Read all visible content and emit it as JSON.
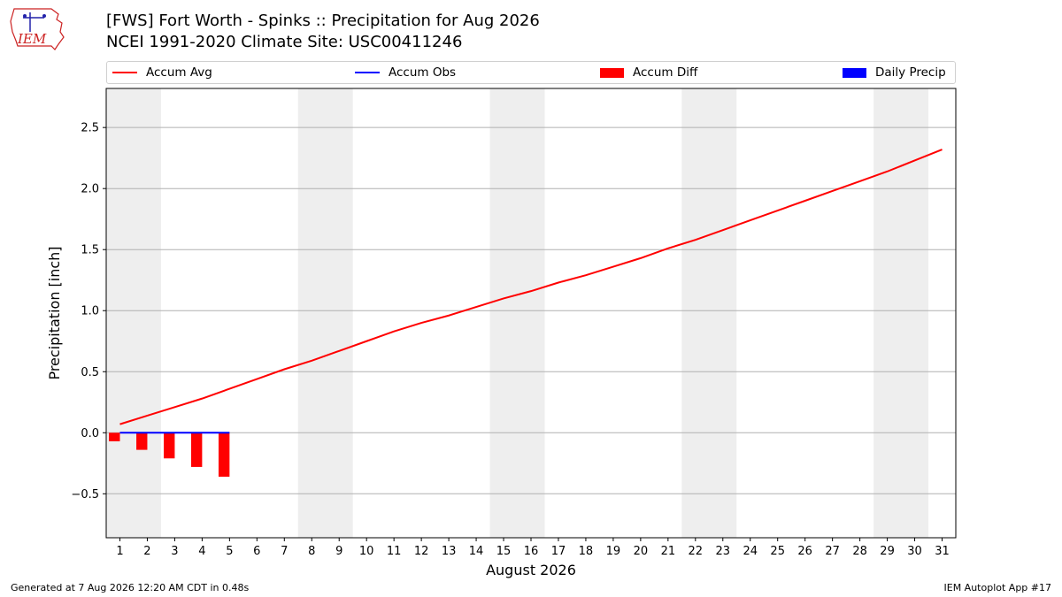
{
  "header": {
    "title_line1": "[FWS] Fort Worth - Spinks :: Precipitation for Aug 2026",
    "title_line2": "NCEI 1991-2020 Climate Site: USC00411246"
  },
  "logo": {
    "text": "IEM",
    "color": "#cc2222"
  },
  "legend": [
    {
      "label": "Accum Avg",
      "kind": "line",
      "color": "#ff0000"
    },
    {
      "label": "Accum Obs",
      "kind": "line",
      "color": "#0000ff"
    },
    {
      "label": "Accum Diff",
      "kind": "box",
      "color": "#ff0000"
    },
    {
      "label": "Daily Precip",
      "kind": "box",
      "color": "#0000ff"
    }
  ],
  "footer": {
    "generated": "Generated at 7 Aug 2026 12:20 AM CDT in 0.48s",
    "app": "IEM Autoplot App #17"
  },
  "chart_data": {
    "type": "line",
    "xlabel": "August 2026",
    "ylabel": "Precipitation [inch]",
    "xlim": [
      0.5,
      31.5
    ],
    "ylim": [
      -0.86,
      2.82
    ],
    "yticks": [
      -0.5,
      0.0,
      0.5,
      1.0,
      1.5,
      2.0,
      2.5
    ],
    "ytick_labels": [
      "−0.5",
      "0.0",
      "0.5",
      "1.0",
      "1.5",
      "2.0",
      "2.5"
    ],
    "x": [
      1,
      2,
      3,
      4,
      5,
      6,
      7,
      8,
      9,
      10,
      11,
      12,
      13,
      14,
      15,
      16,
      17,
      18,
      19,
      20,
      21,
      22,
      23,
      24,
      25,
      26,
      27,
      28,
      29,
      30,
      31
    ],
    "weekend_bands": [
      [
        0.5,
        2.5
      ],
      [
        7.5,
        9.5
      ],
      [
        14.5,
        16.5
      ],
      [
        21.5,
        23.5
      ],
      [
        28.5,
        30.5
      ]
    ],
    "grid": "horizontal",
    "series": [
      {
        "name": "Accum Avg",
        "type": "line",
        "color": "#ff0000",
        "x": [
          1,
          2,
          3,
          4,
          5,
          6,
          7,
          8,
          9,
          10,
          11,
          12,
          13,
          14,
          15,
          16,
          17,
          18,
          19,
          20,
          21,
          22,
          23,
          24,
          25,
          26,
          27,
          28,
          29,
          30,
          31
        ],
        "values": [
          0.07,
          0.14,
          0.21,
          0.28,
          0.36,
          0.44,
          0.52,
          0.59,
          0.67,
          0.75,
          0.83,
          0.9,
          0.96,
          1.03,
          1.1,
          1.16,
          1.23,
          1.29,
          1.36,
          1.43,
          1.51,
          1.58,
          1.66,
          1.74,
          1.82,
          1.9,
          1.98,
          2.06,
          2.14,
          2.23,
          2.32
        ]
      },
      {
        "name": "Accum Obs",
        "type": "line",
        "color": "#0000ff",
        "x": [
          1,
          2,
          3,
          4,
          5
        ],
        "values": [
          0.0,
          0.0,
          0.0,
          0.0,
          0.0
        ]
      },
      {
        "name": "Accum Diff",
        "type": "bar",
        "color": "#ff0000",
        "x": [
          1,
          2,
          3,
          4,
          5
        ],
        "values": [
          -0.07,
          -0.14,
          -0.21,
          -0.28,
          -0.36
        ]
      },
      {
        "name": "Daily Precip",
        "type": "bar",
        "color": "#0000ff",
        "x": [
          1,
          2,
          3,
          4,
          5
        ],
        "values": [
          0,
          0,
          0,
          0,
          0
        ]
      }
    ]
  }
}
